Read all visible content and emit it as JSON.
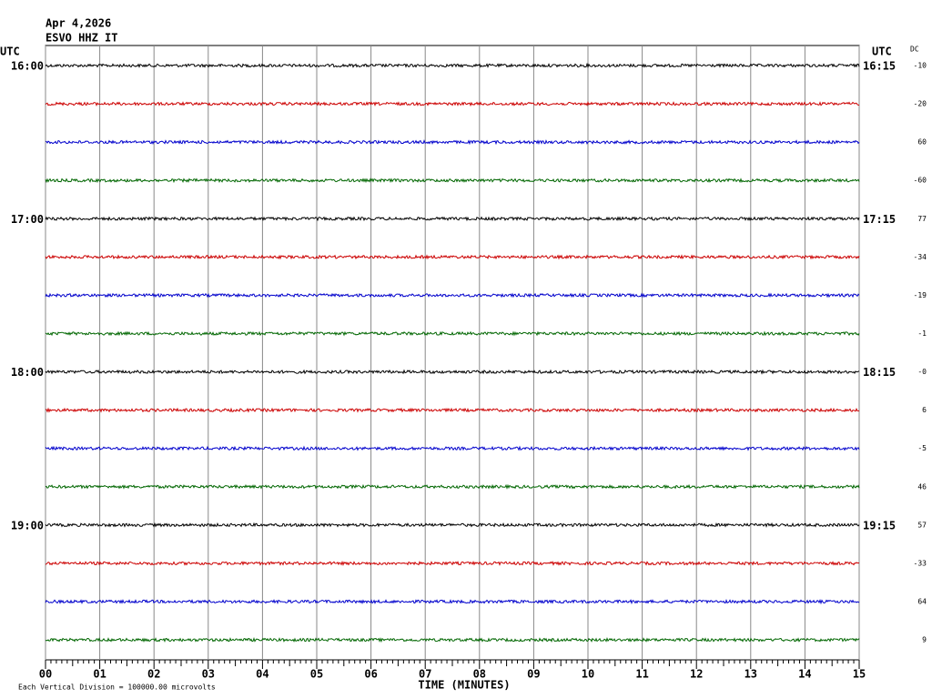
{
  "header": {
    "date": "Apr 4,2026",
    "station": "ESVO HHZ IT",
    "left_zone": "UTC",
    "right_zone": "UTC",
    "dc_title": "DC"
  },
  "trace_colors": [
    "#000000",
    "#cc0000",
    "#0000cc",
    "#006600"
  ],
  "rows": [
    {
      "left": "16:00",
      "right": "16:15",
      "dc": "-10"
    },
    {
      "dc": "-20"
    },
    {
      "dc": "60"
    },
    {
      "dc": "-60"
    },
    {
      "left": "17:00",
      "right": "17:15",
      "dc": "77"
    },
    {
      "dc": "-34"
    },
    {
      "dc": "-19"
    },
    {
      "dc": "-1"
    },
    {
      "left": "18:00",
      "right": "18:15",
      "dc": "-0"
    },
    {
      "dc": "6"
    },
    {
      "dc": "-5"
    },
    {
      "dc": "46"
    },
    {
      "left": "19:00",
      "right": "19:15",
      "dc": "57"
    },
    {
      "dc": "-33"
    },
    {
      "dc": "64"
    },
    {
      "dc": "9"
    }
  ],
  "x_axis": {
    "ticks": [
      "00",
      "01",
      "02",
      "03",
      "04",
      "05",
      "06",
      "07",
      "08",
      "09",
      "10",
      "11",
      "12",
      "13",
      "14",
      "15"
    ],
    "title": "TIME (MINUTES)"
  },
  "footer": "Each Vertical Division = 100000.00 microvolts"
}
